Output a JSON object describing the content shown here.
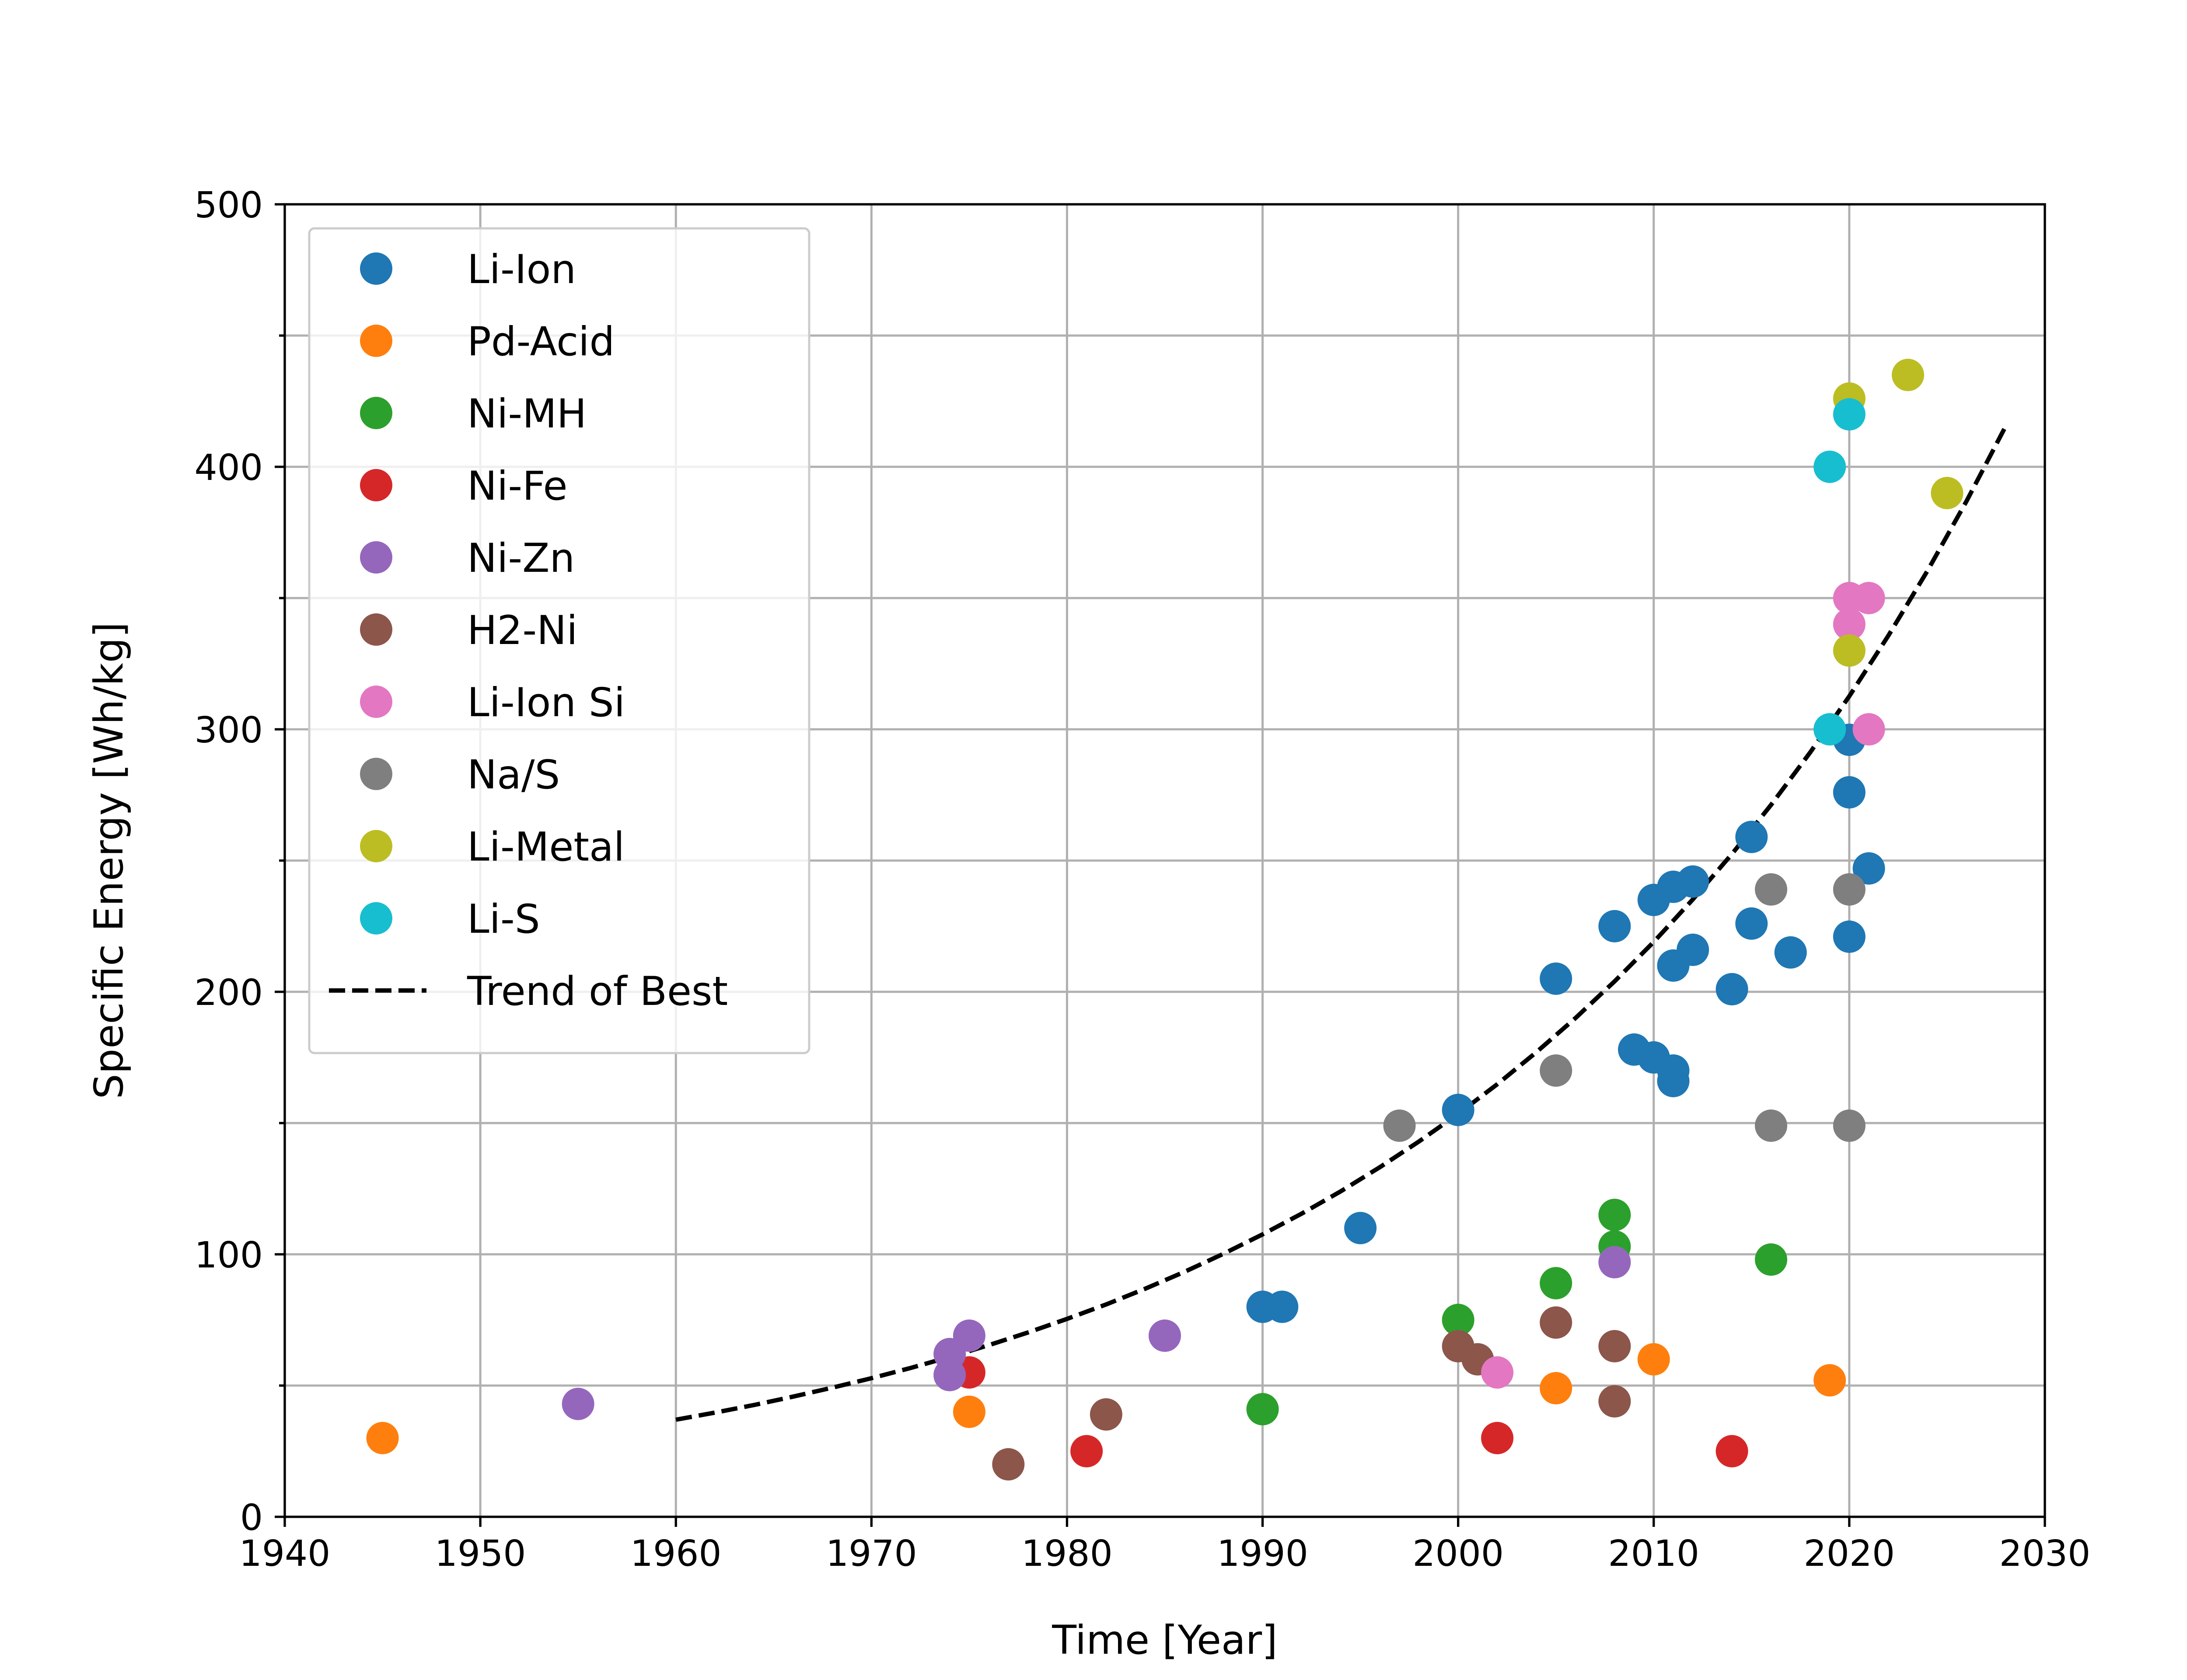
{
  "chart_data": {
    "type": "scatter",
    "title": "",
    "xlabel": "Time [Year]",
    "ylabel": "Specific Energy [Wh/kg]",
    "xlim": [
      1940,
      2030
    ],
    "ylim": [
      0,
      500
    ],
    "xticks": [
      "1940",
      "1950",
      "1960",
      "1970",
      "1980",
      "1990",
      "2000",
      "2010",
      "2020",
      "2030"
    ],
    "yticks": [
      "0",
      "100",
      "200",
      "300",
      "400",
      "500"
    ],
    "grid": true,
    "legend_position": "top-left",
    "series": [
      {
        "name": "Li-Ion",
        "color": "#1f77b4",
        "points": [
          [
            1990,
            80
          ],
          [
            1991,
            80
          ],
          [
            1995,
            110
          ],
          [
            2000,
            155
          ],
          [
            2005,
            205
          ],
          [
            2008,
            225
          ],
          [
            2009,
            178
          ],
          [
            2010,
            175
          ],
          [
            2010,
            235
          ],
          [
            2011,
            170
          ],
          [
            2011,
            166
          ],
          [
            2011,
            210
          ],
          [
            2011,
            240
          ],
          [
            2012,
            216
          ],
          [
            2012,
            242
          ],
          [
            2014,
            201
          ],
          [
            2015,
            226
          ],
          [
            2015,
            259
          ],
          [
            2017,
            215
          ],
          [
            2020,
            221
          ],
          [
            2020,
            276
          ],
          [
            2020,
            296
          ],
          [
            2021,
            247
          ]
        ]
      },
      {
        "name": "Pd-Acid",
        "color": "#ff7f0e",
        "points": [
          [
            1945,
            30
          ],
          [
            1975,
            40
          ],
          [
            2005,
            49
          ],
          [
            2010,
            60
          ],
          [
            2019,
            52
          ]
        ]
      },
      {
        "name": "Ni-MH",
        "color": "#2ca02c",
        "points": [
          [
            1990,
            41
          ],
          [
            2000,
            75
          ],
          [
            2005,
            89
          ],
          [
            2008,
            103
          ],
          [
            2008,
            115
          ],
          [
            2016,
            98
          ]
        ]
      },
      {
        "name": "Ni-Fe",
        "color": "#d62728",
        "points": [
          [
            1975,
            55
          ],
          [
            1981,
            25
          ],
          [
            2002,
            30
          ],
          [
            2014,
            25
          ]
        ]
      },
      {
        "name": "Ni-Zn",
        "color": "#9467bd",
        "points": [
          [
            1955,
            43
          ],
          [
            1974,
            54
          ],
          [
            1974,
            62
          ],
          [
            1975,
            69
          ],
          [
            1985,
            69
          ],
          [
            2008,
            97
          ]
        ]
      },
      {
        "name": "H2-Ni",
        "color": "#8c564b",
        "points": [
          [
            1977,
            20
          ],
          [
            1982,
            39
          ],
          [
            2000,
            65
          ],
          [
            2001,
            60
          ],
          [
            2005,
            74
          ],
          [
            2008,
            44
          ],
          [
            2008,
            65
          ]
        ]
      },
      {
        "name": "Li-Ion Si",
        "color": "#e377c2",
        "points": [
          [
            2002,
            55
          ],
          [
            2020,
            340
          ],
          [
            2020,
            350
          ],
          [
            2021,
            350
          ],
          [
            2021,
            300
          ]
        ]
      },
      {
        "name": "Na/S",
        "color": "#7f7f7f",
        "points": [
          [
            1997,
            149
          ],
          [
            2005,
            170
          ],
          [
            2016,
            149
          ],
          [
            2016,
            239
          ],
          [
            2020,
            149
          ],
          [
            2020,
            239
          ]
        ]
      },
      {
        "name": "Li-Metal",
        "color": "#bcbd22",
        "points": [
          [
            2020,
            426
          ],
          [
            2020,
            330
          ],
          [
            2023,
            435
          ],
          [
            2025,
            390
          ]
        ]
      },
      {
        "name": "Li-S",
        "color": "#17becf",
        "points": [
          [
            2019,
            400
          ],
          [
            2019,
            300
          ],
          [
            2020,
            420
          ]
        ]
      }
    ],
    "trend": {
      "name": "Trend of Best",
      "color": "#000000",
      "style": "dashed",
      "x": [
        1960,
        1962,
        1964,
        1966,
        1968,
        1970,
        1972,
        1974,
        1976,
        1978,
        1980,
        1982,
        1984,
        1986,
        1988,
        1990,
        1992,
        1994,
        1996,
        1998,
        2000,
        2002,
        2004,
        2006,
        2008,
        2010,
        2012,
        2014,
        2016,
        2018,
        2020,
        2022,
        2024,
        2026,
        2028
      ],
      "y": [
        37,
        39.7,
        42.6,
        45.8,
        49.2,
        52.8,
        56.7,
        60.9,
        65.4,
        70.2,
        75.4,
        80.9,
        86.9,
        93.3,
        100.2,
        107.6,
        115.5,
        124,
        133.2,
        143,
        153.5,
        164.8,
        177,
        190,
        204,
        219,
        235.2,
        252.5,
        271.2,
        291.2,
        312.6,
        335.7,
        360.4,
        387,
        415.5
      ]
    }
  }
}
